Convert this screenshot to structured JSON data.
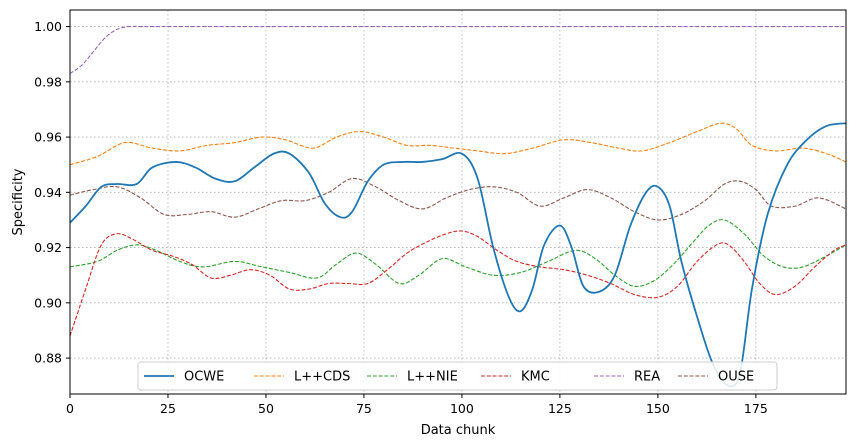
{
  "chart_data": {
    "type": "line",
    "xlabel": "Data chunk",
    "ylabel": "Specificity",
    "xlim": [
      0,
      198
    ],
    "ylim": [
      0.867,
      1.006
    ],
    "xticks": [
      0,
      25,
      50,
      75,
      100,
      125,
      150,
      175
    ],
    "yticks": [
      0.88,
      0.9,
      0.92,
      0.94,
      0.96,
      0.98,
      1.0
    ],
    "xtick_labels": [
      "0",
      "25",
      "50",
      "75",
      "100",
      "125",
      "150",
      "175"
    ],
    "ytick_labels": [
      "0.88",
      "0.90",
      "0.92",
      "0.94",
      "0.96",
      "0.98",
      "1.00"
    ],
    "grid": true,
    "legend_position": "bottom-center",
    "series": [
      {
        "name": "OCWE",
        "color": "#1f77b4",
        "style": "solid",
        "x": [
          0,
          4,
          8,
          12,
          17,
          21,
          27,
          32,
          37,
          42,
          47,
          52,
          56,
          61,
          65,
          69,
          72,
          76,
          80,
          85,
          90,
          95,
          100,
          104,
          108,
          112,
          115,
          118,
          121,
          125,
          128,
          131,
          135,
          139,
          143,
          147,
          150,
          153,
          156,
          160,
          164,
          168,
          171,
          174,
          178,
          183,
          188,
          193,
          198
        ],
        "y": [
          0.929,
          0.935,
          0.942,
          0.943,
          0.943,
          0.949,
          0.951,
          0.949,
          0.945,
          0.944,
          0.949,
          0.954,
          0.954,
          0.947,
          0.936,
          0.931,
          0.933,
          0.944,
          0.95,
          0.951,
          0.951,
          0.952,
          0.954,
          0.945,
          0.92,
          0.902,
          0.897,
          0.905,
          0.921,
          0.928,
          0.92,
          0.906,
          0.904,
          0.91,
          0.928,
          0.94,
          0.942,
          0.935,
          0.915,
          0.895,
          0.878,
          0.87,
          0.875,
          0.905,
          0.932,
          0.95,
          0.959,
          0.964,
          0.965
        ]
      },
      {
        "name": "L++CDS",
        "color": "#ff7f0e",
        "style": "dashed",
        "x": [
          0,
          7,
          14,
          21,
          28,
          35,
          42,
          49,
          55,
          62,
          68,
          74,
          80,
          86,
          92,
          98,
          104,
          111,
          118,
          126,
          133,
          140,
          146,
          153,
          160,
          166,
          170,
          174,
          180,
          187,
          193,
          198
        ],
        "y": [
          0.95,
          0.953,
          0.958,
          0.956,
          0.955,
          0.957,
          0.958,
          0.96,
          0.959,
          0.956,
          0.96,
          0.962,
          0.96,
          0.957,
          0.957,
          0.956,
          0.955,
          0.954,
          0.956,
          0.959,
          0.958,
          0.956,
          0.955,
          0.958,
          0.962,
          0.965,
          0.963,
          0.957,
          0.955,
          0.956,
          0.954,
          0.951
        ]
      },
      {
        "name": "L++NIE",
        "color": "#2ca02c",
        "style": "dashed",
        "x": [
          0,
          7,
          12,
          17,
          22,
          28,
          34,
          42,
          49,
          56,
          63,
          68,
          73,
          78,
          84,
          89,
          95,
          101,
          108,
          115,
          122,
          129,
          134,
          139,
          144,
          149,
          154,
          159,
          163,
          167,
          172,
          177,
          182,
          187,
          193,
          198
        ],
        "y": [
          0.913,
          0.915,
          0.919,
          0.921,
          0.919,
          0.915,
          0.913,
          0.915,
          0.913,
          0.911,
          0.909,
          0.914,
          0.918,
          0.914,
          0.907,
          0.91,
          0.916,
          0.913,
          0.91,
          0.911,
          0.915,
          0.919,
          0.916,
          0.91,
          0.906,
          0.908,
          0.914,
          0.922,
          0.928,
          0.93,
          0.925,
          0.917,
          0.913,
          0.913,
          0.917,
          0.921
        ]
      },
      {
        "name": "KMC",
        "color": "#d62728",
        "style": "dashed",
        "x": [
          0,
          4,
          8,
          12,
          16,
          21,
          26,
          31,
          36,
          41,
          46,
          51,
          56,
          61,
          66,
          71,
          76,
          81,
          86,
          91,
          96,
          100,
          104,
          109,
          114,
          120,
          126,
          132,
          138,
          144,
          150,
          155,
          160,
          165,
          168,
          172,
          176,
          180,
          185,
          190,
          195,
          198
        ],
        "y": [
          0.888,
          0.905,
          0.921,
          0.925,
          0.923,
          0.919,
          0.917,
          0.914,
          0.909,
          0.91,
          0.912,
          0.91,
          0.905,
          0.905,
          0.907,
          0.907,
          0.907,
          0.912,
          0.918,
          0.922,
          0.925,
          0.926,
          0.924,
          0.919,
          0.915,
          0.913,
          0.912,
          0.91,
          0.907,
          0.903,
          0.902,
          0.906,
          0.915,
          0.921,
          0.921,
          0.915,
          0.907,
          0.903,
          0.906,
          0.913,
          0.919,
          0.921
        ]
      },
      {
        "name": "REA",
        "color": "#9467bd",
        "style": "dashed",
        "x": [
          0,
          3,
          6,
          9,
          12,
          15,
          18,
          22,
          30,
          50,
          100,
          150,
          198
        ],
        "y": [
          0.983,
          0.986,
          0.991,
          0.996,
          0.999,
          1.0,
          1.0,
          1.0,
          1.0,
          1.0,
          1.0,
          1.0,
          1.0
        ]
      },
      {
        "name": "OUSE",
        "color": "#8c564b",
        "style": "dashed",
        "x": [
          0,
          6,
          12,
          18,
          24,
          30,
          36,
          42,
          48,
          54,
          60,
          66,
          72,
          78,
          84,
          90,
          96,
          102,
          108,
          114,
          120,
          126,
          132,
          138,
          144,
          150,
          156,
          162,
          167,
          171,
          175,
          179,
          185,
          191,
          198
        ],
        "y": [
          0.939,
          0.941,
          0.942,
          0.938,
          0.932,
          0.932,
          0.933,
          0.931,
          0.934,
          0.937,
          0.937,
          0.94,
          0.945,
          0.942,
          0.937,
          0.934,
          0.938,
          0.941,
          0.942,
          0.94,
          0.935,
          0.938,
          0.941,
          0.938,
          0.933,
          0.93,
          0.932,
          0.937,
          0.943,
          0.944,
          0.941,
          0.935,
          0.935,
          0.938,
          0.934
        ]
      }
    ]
  }
}
